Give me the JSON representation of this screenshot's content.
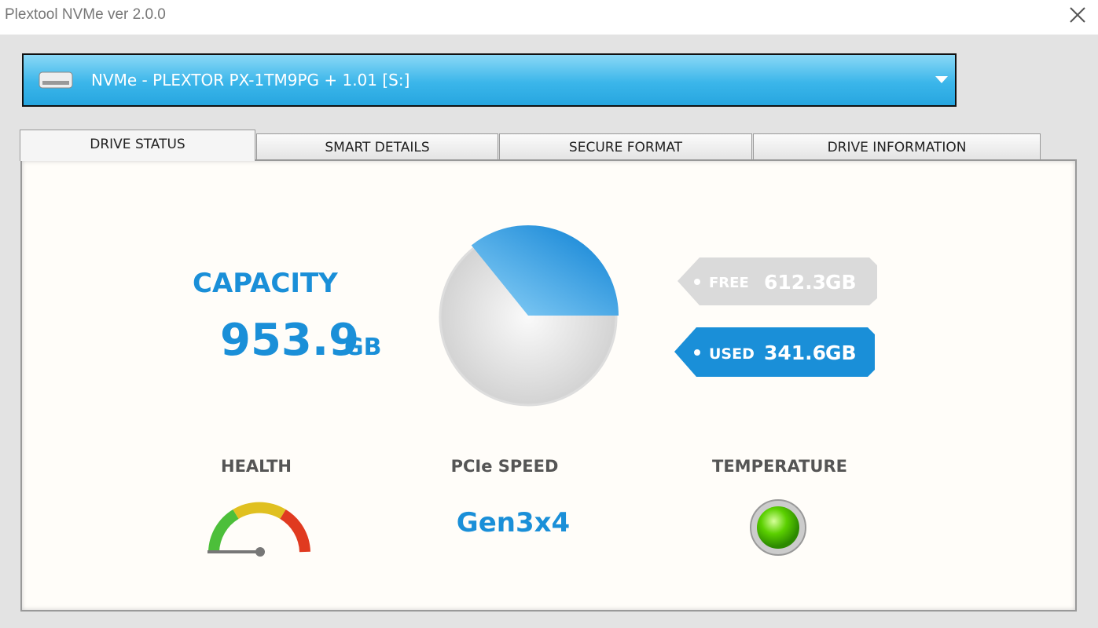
{
  "window": {
    "title": "Plextool NVMe ver 2.0.0"
  },
  "drive_selector": {
    "selected": "NVMe - PLEXTOR PX-1TM9PG + 1.01 [S:]"
  },
  "tabs": [
    "DRIVE STATUS",
    "SMART DETAILS",
    "SECURE FORMAT",
    "DRIVE INFORMATION"
  ],
  "drive_status": {
    "capacity": {
      "label": "CAPACITY",
      "value": 953.9,
      "unit": "GB"
    },
    "free": {
      "label": "FREE",
      "value": 612.3,
      "unit": "GB"
    },
    "used": {
      "label": "USED",
      "value": 341.6,
      "unit": "GB"
    },
    "health": {
      "label": "HEALTH"
    },
    "pcie_speed": {
      "label": "PCIe SPEED",
      "value": "Gen3x4"
    },
    "temperature": {
      "label": "TEMPERATURE"
    }
  }
}
